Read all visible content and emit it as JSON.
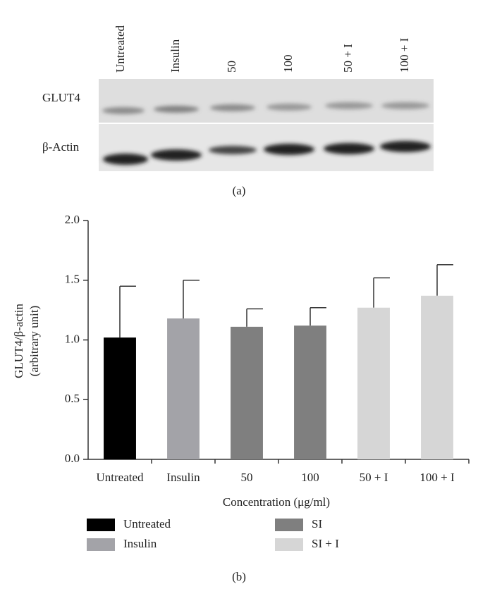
{
  "blot": {
    "lanes": [
      "Untreated",
      "Insulin",
      "50",
      "100",
      "50 + I",
      "100 + I"
    ],
    "rows": [
      "GLUT4",
      "β-Actin"
    ],
    "panel_label": "(a)"
  },
  "chart_data": {
    "type": "bar",
    "panel_label": "(b)",
    "x_label": "Concentration (μg/ml)",
    "y_label": [
      "GLUT4/β-actin",
      "(arbitrary unit)"
    ],
    "categories": [
      "Untreated",
      "Insulin",
      "50",
      "100",
      "50 + I",
      "100 + I"
    ],
    "values": [
      1.02,
      1.18,
      1.11,
      1.12,
      1.27,
      1.37
    ],
    "errors": [
      0.43,
      0.32,
      0.15,
      0.15,
      0.25,
      0.26
    ],
    "colors": [
      "#000000",
      "#a3a3a8",
      "#7f7f7f",
      "#7f7f7f",
      "#d6d6d6",
      "#d6d6d6"
    ],
    "legend": [
      {
        "name": "Untreated",
        "color": "#000000"
      },
      {
        "name": "Insulin",
        "color": "#a3a3a8"
      },
      {
        "name": "SI",
        "color": "#7f7f7f"
      },
      {
        "name": "SI + I",
        "color": "#d6d6d6"
      }
    ],
    "ylim": [
      0,
      2
    ],
    "yticks": [
      {
        "value": 0,
        "label": "0.0"
      },
      {
        "value": 0.5,
        "label": "0.5"
      },
      {
        "value": 1,
        "label": "1.0"
      },
      {
        "value": 1.5,
        "label": "1.5"
      },
      {
        "value": 2,
        "label": "2.0"
      }
    ]
  }
}
